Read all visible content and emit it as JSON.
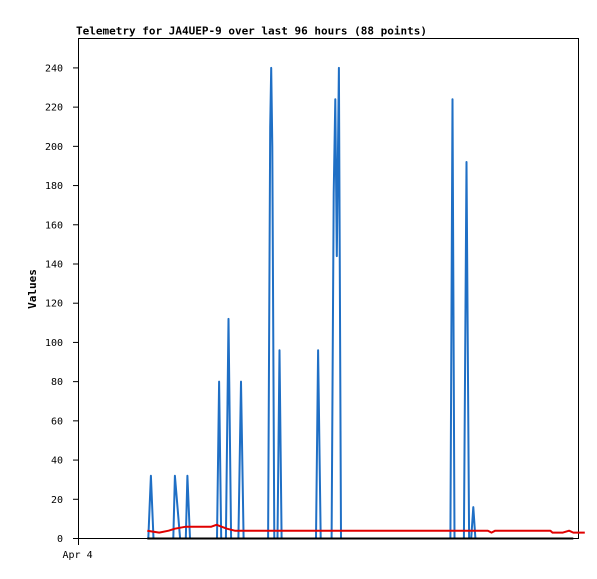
{
  "chart_data": {
    "type": "line",
    "title": "Telemetry for JA4UEP-9 over last 96 hours (88 points)",
    "ylabel": "Values",
    "xlabel": "",
    "ylim": [
      0,
      255
    ],
    "yticks": [
      0,
      20,
      40,
      60,
      80,
      100,
      120,
      140,
      160,
      180,
      200,
      220,
      240
    ],
    "xticks": [
      {
        "label": "Apr 4",
        "x": 0
      }
    ],
    "xlim": [
      0,
      96
    ],
    "grid": false,
    "legend": "none",
    "series": [
      {
        "color": "#1f6fc5",
        "points": [
          [
            13.4,
            0
          ],
          [
            13.9,
            32
          ],
          [
            14.4,
            0
          ],
          [
            18.2,
            0
          ],
          [
            18.5,
            32
          ],
          [
            19.5,
            0
          ],
          [
            20.6,
            0
          ],
          [
            20.9,
            32
          ],
          [
            21.4,
            0
          ],
          [
            26.6,
            0
          ],
          [
            27.0,
            80
          ],
          [
            27.4,
            0
          ],
          [
            28.3,
            0
          ],
          [
            28.8,
            112
          ],
          [
            29.3,
            0
          ],
          [
            30.7,
            0
          ],
          [
            31.2,
            80
          ],
          [
            31.7,
            0
          ],
          [
            36.4,
            0
          ],
          [
            36.8,
            210
          ],
          [
            37.0,
            240
          ],
          [
            37.2,
            200
          ],
          [
            37.6,
            0
          ],
          [
            38.2,
            0
          ],
          [
            38.6,
            96
          ],
          [
            39.0,
            0
          ],
          [
            45.6,
            0
          ],
          [
            46.0,
            96
          ],
          [
            46.5,
            0
          ],
          [
            48.6,
            0
          ],
          [
            49.0,
            176
          ],
          [
            49.3,
            224
          ],
          [
            49.6,
            144
          ],
          [
            50.0,
            240
          ],
          [
            50.4,
            0
          ],
          [
            71.4,
            0
          ],
          [
            71.8,
            224
          ],
          [
            72.2,
            0
          ],
          [
            74.0,
            0
          ],
          [
            74.5,
            192
          ],
          [
            75.0,
            0
          ],
          [
            75.4,
            0
          ],
          [
            75.8,
            16
          ],
          [
            76.2,
            0
          ]
        ]
      },
      {
        "color": "#e00000",
        "points": [
          [
            13.2,
            4
          ],
          [
            15.5,
            3
          ],
          [
            17.3,
            4
          ],
          [
            18.5,
            5
          ],
          [
            20.6,
            6
          ],
          [
            22.5,
            6
          ],
          [
            25.5,
            6
          ],
          [
            26.5,
            7
          ],
          [
            28.5,
            5
          ],
          [
            30.0,
            4
          ],
          [
            45.0,
            4
          ],
          [
            60.0,
            4
          ],
          [
            75.0,
            4
          ],
          [
            78.6,
            4
          ],
          [
            79.3,
            3
          ],
          [
            80.0,
            4
          ],
          [
            90.6,
            4
          ],
          [
            91.0,
            3
          ],
          [
            93.0,
            3
          ],
          [
            94.2,
            4
          ],
          [
            95.0,
            3
          ],
          [
            97.2,
            3
          ]
        ]
      },
      {
        "color": "#000000",
        "points": [
          [
            13.2,
            0
          ],
          [
            95.0,
            0
          ]
        ]
      }
    ]
  }
}
